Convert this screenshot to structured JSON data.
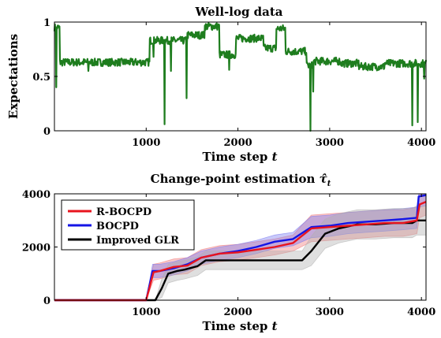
{
  "chart_data": [
    {
      "type": "line",
      "title": "Well-log data",
      "xlabel": "Time step",
      "xlabel_var": "t",
      "ylabel": "Expectations",
      "xlim": [
        0,
        4050
      ],
      "ylim": [
        0,
        1
      ],
      "xticks": [
        "1000",
        "2000",
        "3000",
        "4000"
      ],
      "xtick_values": [
        1000,
        2000,
        3000,
        4000
      ],
      "yticks": [
        "0",
        "0.5",
        "1"
      ],
      "ytick_values": [
        0,
        0.5,
        1
      ],
      "series": [
        {
          "color": "#1e7d1e",
          "segments": [
            {
              "x0": 0,
              "x1": 60,
              "level": 0.95
            },
            {
              "x0": 60,
              "x1": 1040,
              "level": 0.63
            },
            {
              "x0": 1040,
              "x1": 1450,
              "level": 0.83
            },
            {
              "x0": 1450,
              "x1": 1640,
              "level": 0.88
            },
            {
              "x0": 1640,
              "x1": 1800,
              "level": 0.96
            },
            {
              "x0": 1800,
              "x1": 1980,
              "level": 0.7
            },
            {
              "x0": 1980,
              "x1": 2280,
              "level": 0.85
            },
            {
              "x0": 2280,
              "x1": 2420,
              "level": 0.76
            },
            {
              "x0": 2420,
              "x1": 2520,
              "level": 0.94
            },
            {
              "x0": 2520,
              "x1": 2750,
              "level": 0.73
            },
            {
              "x0": 2750,
              "x1": 2820,
              "level": 0.6
            },
            {
              "x0": 2820,
              "x1": 3120,
              "level": 0.64
            },
            {
              "x0": 3120,
              "x1": 3320,
              "level": 0.62
            },
            {
              "x0": 3320,
              "x1": 3600,
              "level": 0.59
            },
            {
              "x0": 3600,
              "x1": 4050,
              "level": 0.62
            }
          ],
          "spikes": [
            {
              "x": 20,
              "y": 0.4
            },
            {
              "x": 370,
              "y": 0.55
            },
            {
              "x": 1080,
              "y": 0.68
            },
            {
              "x": 1200,
              "y": 0.06
            },
            {
              "x": 1270,
              "y": 0.55
            },
            {
              "x": 1440,
              "y": 0.3
            },
            {
              "x": 1905,
              "y": 0.56
            },
            {
              "x": 2790,
              "y": 0.0
            },
            {
              "x": 2820,
              "y": 0.36
            },
            {
              "x": 3900,
              "y": 0.05
            },
            {
              "x": 3960,
              "y": 0.08
            },
            {
              "x": 4030,
              "y": 0.48
            }
          ]
        }
      ]
    },
    {
      "type": "line",
      "title": "Change-point estimation",
      "title_symbol": "τ̂",
      "title_subscript": "t",
      "xlabel": "Time step",
      "xlabel_var": "t",
      "ylabel": "",
      "xlim": [
        0,
        4050
      ],
      "ylim": [
        0,
        4000
      ],
      "xticks": [
        "1000",
        "2000",
        "3000",
        "4000"
      ],
      "xtick_values": [
        1000,
        2000,
        3000,
        4000
      ],
      "yticks": [
        "0",
        "2000",
        "4000"
      ],
      "ytick_values": [
        0,
        2000,
        4000
      ],
      "legend": "top-left",
      "series": [
        {
          "name": "R-BOCPD",
          "color": "#e8141e",
          "band_color": "#f07878",
          "points": [
            [
              0,
              0
            ],
            [
              1000,
              0
            ],
            [
              1080,
              1050
            ],
            [
              1150,
              1100
            ],
            [
              1300,
              1250
            ],
            [
              1450,
              1300
            ],
            [
              1600,
              1600
            ],
            [
              1800,
              1750
            ],
            [
              2000,
              1800
            ],
            [
              2200,
              1900
            ],
            [
              2400,
              2000
            ],
            [
              2600,
              2150
            ],
            [
              2800,
              2700
            ],
            [
              3000,
              2750
            ],
            [
              3200,
              2800
            ],
            [
              3400,
              2850
            ],
            [
              3600,
              2900
            ],
            [
              3800,
              2900
            ],
            [
              3950,
              3000
            ],
            [
              3980,
              3600
            ],
            [
              4050,
              3700
            ]
          ],
          "band": [
            300,
            500
          ]
        },
        {
          "name": "BOCPD",
          "color": "#1414e6",
          "band_color": "#7878f0",
          "points": [
            [
              0,
              0
            ],
            [
              1000,
              0
            ],
            [
              1070,
              1100
            ],
            [
              1150,
              1100
            ],
            [
              1300,
              1200
            ],
            [
              1450,
              1350
            ],
            [
              1600,
              1600
            ],
            [
              1800,
              1750
            ],
            [
              2000,
              1850
            ],
            [
              2200,
              2000
            ],
            [
              2400,
              2200
            ],
            [
              2600,
              2300
            ],
            [
              2800,
              2750
            ],
            [
              3000,
              2800
            ],
            [
              3200,
              2900
            ],
            [
              3400,
              2950
            ],
            [
              3600,
              3000
            ],
            [
              3800,
              3050
            ],
            [
              3950,
              3100
            ],
            [
              3970,
              3900
            ],
            [
              4050,
              3950
            ]
          ],
          "band": [
            250,
            400
          ]
        },
        {
          "name": "Improved GLR",
          "color": "#000000",
          "band_color": "#b0b0b0",
          "points": [
            [
              0,
              0
            ],
            [
              1100,
              0
            ],
            [
              1170,
              450
            ],
            [
              1240,
              1000
            ],
            [
              1340,
              1100
            ],
            [
              1420,
              1150
            ],
            [
              1560,
              1280
            ],
            [
              1650,
              1500
            ],
            [
              1800,
              1500
            ],
            [
              2000,
              1500
            ],
            [
              2200,
              1500
            ],
            [
              2400,
              1500
            ],
            [
              2700,
              1500
            ],
            [
              2800,
              1850
            ],
            [
              2950,
              2500
            ],
            [
              3100,
              2700
            ],
            [
              3300,
              2850
            ],
            [
              3500,
              2850
            ],
            [
              3700,
              2900
            ],
            [
              3900,
              2900
            ],
            [
              3950,
              3000
            ],
            [
              4050,
              3000
            ]
          ],
          "band": [
            350,
            550
          ]
        }
      ]
    }
  ]
}
